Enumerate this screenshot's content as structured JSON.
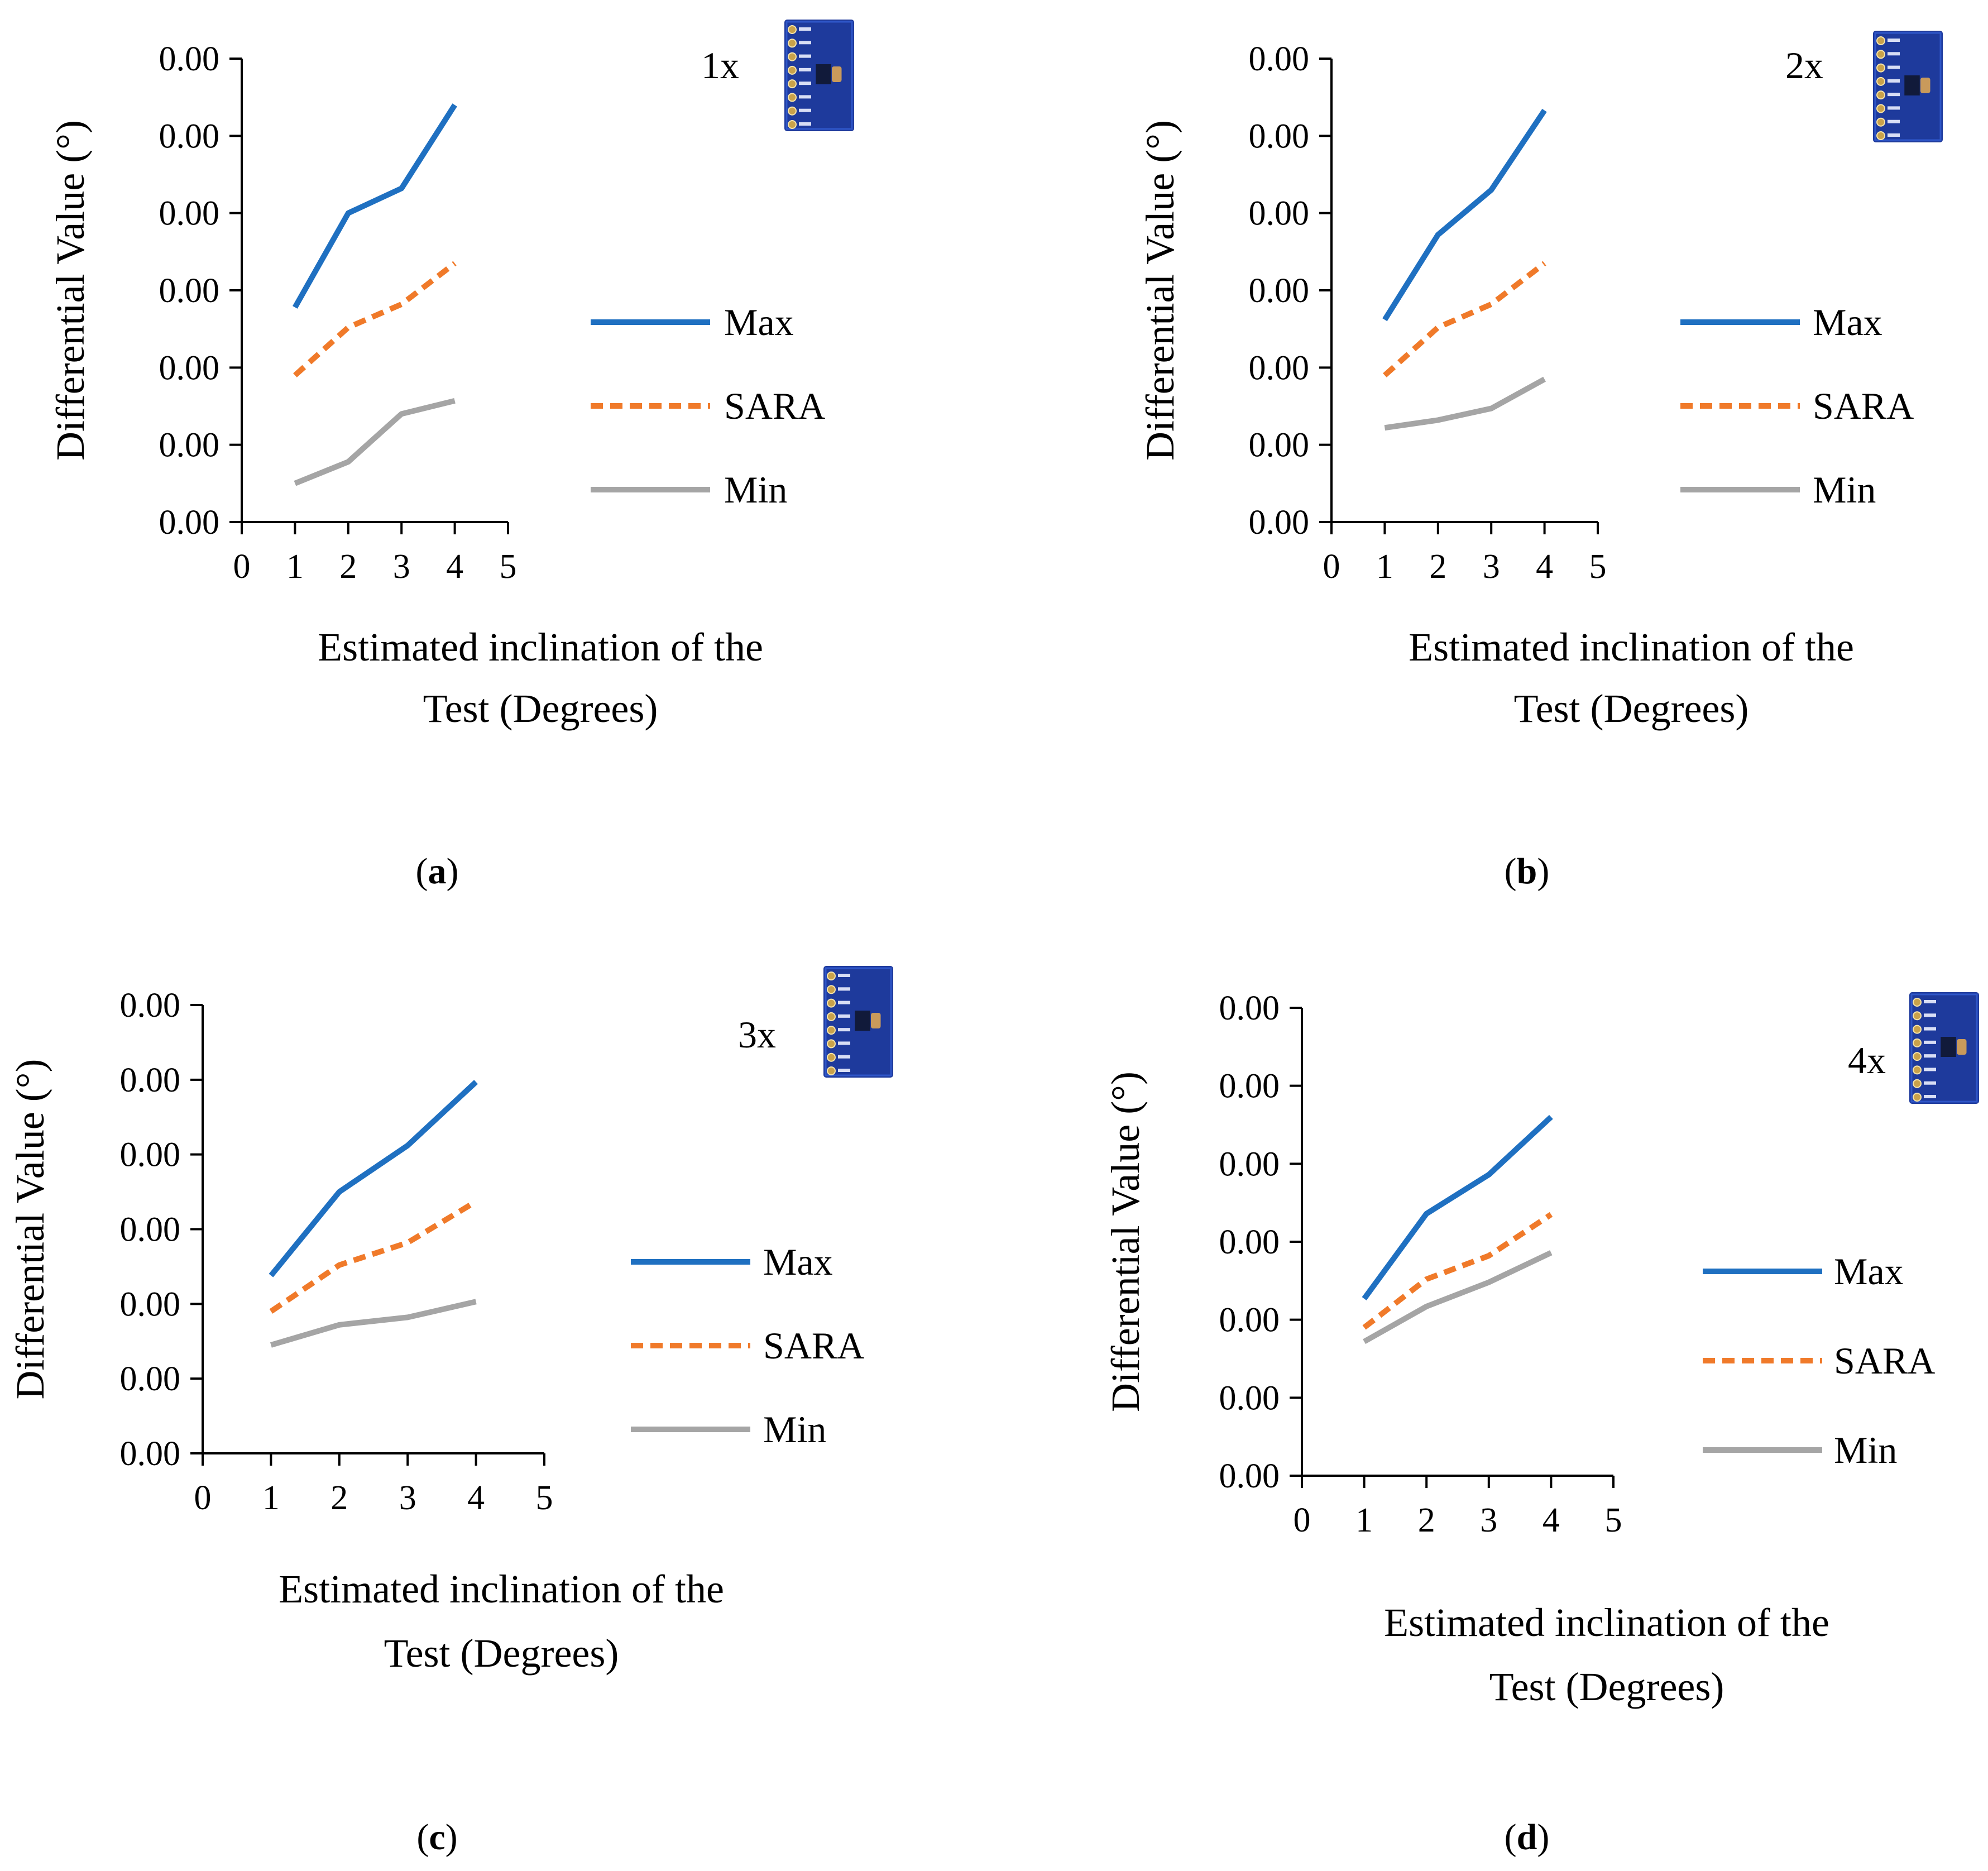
{
  "figure": {
    "colors": {
      "Max": "#1F70C1",
      "SARA": "#F07A2A",
      "Min": "#A5A5A5",
      "axis": "#000000"
    },
    "legend_placement": "right",
    "sensor_icon": "accelerometer-board-icon"
  },
  "chart_data": [
    {
      "type": "line",
      "panel_caption": "(a)",
      "caption_letter": "a",
      "inset_label": "1x",
      "xlabel_line1": "Estimated inclination of the",
      "xlabel_line2": "Test (Degrees)",
      "ylabel": "Differential Value (°)",
      "xlim": [
        0,
        5
      ],
      "ylim": [
        0,
        6
      ],
      "xticks": [
        "0",
        "1",
        "2",
        "3",
        "4",
        "5"
      ],
      "yticks": [
        "0.00",
        "0.00",
        "0.00",
        "0.00",
        "0.00",
        "0.00",
        "0.00"
      ],
      "grid": false,
      "legend": [
        "Max",
        "SARA",
        "Min"
      ],
      "x": [
        1,
        2,
        3,
        4
      ],
      "series": [
        {
          "name": "Max",
          "style": "solid",
          "values": [
            2.78,
            4.0,
            4.32,
            5.4
          ]
        },
        {
          "name": "SARA",
          "style": "dashed",
          "values": [
            1.9,
            2.52,
            2.82,
            3.35
          ]
        },
        {
          "name": "Min",
          "style": "solid",
          "values": [
            0.5,
            0.78,
            1.4,
            1.57
          ]
        }
      ]
    },
    {
      "type": "line",
      "panel_caption": "(b)",
      "caption_letter": "b",
      "inset_label": "2x",
      "xlabel_line1": "Estimated inclination of the",
      "xlabel_line2": "Test (Degrees)",
      "ylabel": "Differential Value (°)",
      "xlim": [
        0,
        5
      ],
      "ylim": [
        0,
        6
      ],
      "xticks": [
        "0",
        "1",
        "2",
        "3",
        "4",
        "5"
      ],
      "yticks": [
        "0.00",
        "0.00",
        "0.00",
        "0.00",
        "0.00",
        "0.00",
        "0.00"
      ],
      "grid": false,
      "legend": [
        "Max",
        "SARA",
        "Min"
      ],
      "x": [
        1,
        2,
        3,
        4
      ],
      "series": [
        {
          "name": "Max",
          "style": "solid",
          "values": [
            2.62,
            3.72,
            4.3,
            5.33
          ]
        },
        {
          "name": "SARA",
          "style": "dashed",
          "values": [
            1.9,
            2.52,
            2.82,
            3.35
          ]
        },
        {
          "name": "Min",
          "style": "solid",
          "values": [
            1.22,
            1.32,
            1.47,
            1.85
          ]
        }
      ]
    },
    {
      "type": "line",
      "panel_caption": "(c)",
      "caption_letter": "c",
      "inset_label": "3x",
      "xlabel_line1": "Estimated inclination of the",
      "xlabel_line2": "Test (Degrees)",
      "ylabel": "Differential Value (°)",
      "xlim": [
        0,
        5
      ],
      "ylim": [
        0,
        6
      ],
      "xticks": [
        "0",
        "1",
        "2",
        "3",
        "4",
        "5"
      ],
      "yticks": [
        "0.00",
        "0.00",
        "0.00",
        "0.00",
        "0.00",
        "0.00",
        "0.00"
      ],
      "grid": false,
      "legend": [
        "Max",
        "SARA",
        "Min"
      ],
      "x": [
        1,
        2,
        3,
        4
      ],
      "series": [
        {
          "name": "Max",
          "style": "solid",
          "values": [
            2.38,
            3.5,
            4.12,
            4.97
          ]
        },
        {
          "name": "SARA",
          "style": "dashed",
          "values": [
            1.9,
            2.52,
            2.82,
            3.37
          ]
        },
        {
          "name": "Min",
          "style": "solid",
          "values": [
            1.45,
            1.72,
            1.82,
            2.03
          ]
        }
      ]
    },
    {
      "type": "line",
      "panel_caption": "(d)",
      "caption_letter": "d",
      "inset_label": "4x",
      "xlabel_line1": "Estimated inclination of the",
      "xlabel_line2": "Test (Degrees)",
      "ylabel": "Differential Value (°)",
      "xlim": [
        0,
        5
      ],
      "ylim": [
        0,
        6
      ],
      "xticks": [
        "0",
        "1",
        "2",
        "3",
        "4",
        "5"
      ],
      "yticks": [
        "0.00",
        "0.00",
        "0.00",
        "0.00",
        "0.00",
        "0.00",
        "0.00"
      ],
      "grid": false,
      "legend": [
        "Max",
        "SARA",
        "Min"
      ],
      "x": [
        1,
        2,
        3,
        4
      ],
      "series": [
        {
          "name": "Max",
          "style": "solid",
          "values": [
            2.27,
            3.36,
            3.86,
            4.6
          ]
        },
        {
          "name": "SARA",
          "style": "dashed",
          "values": [
            1.9,
            2.52,
            2.82,
            3.35
          ]
        },
        {
          "name": "Min",
          "style": "solid",
          "values": [
            1.72,
            2.17,
            2.48,
            2.86
          ]
        }
      ]
    }
  ]
}
